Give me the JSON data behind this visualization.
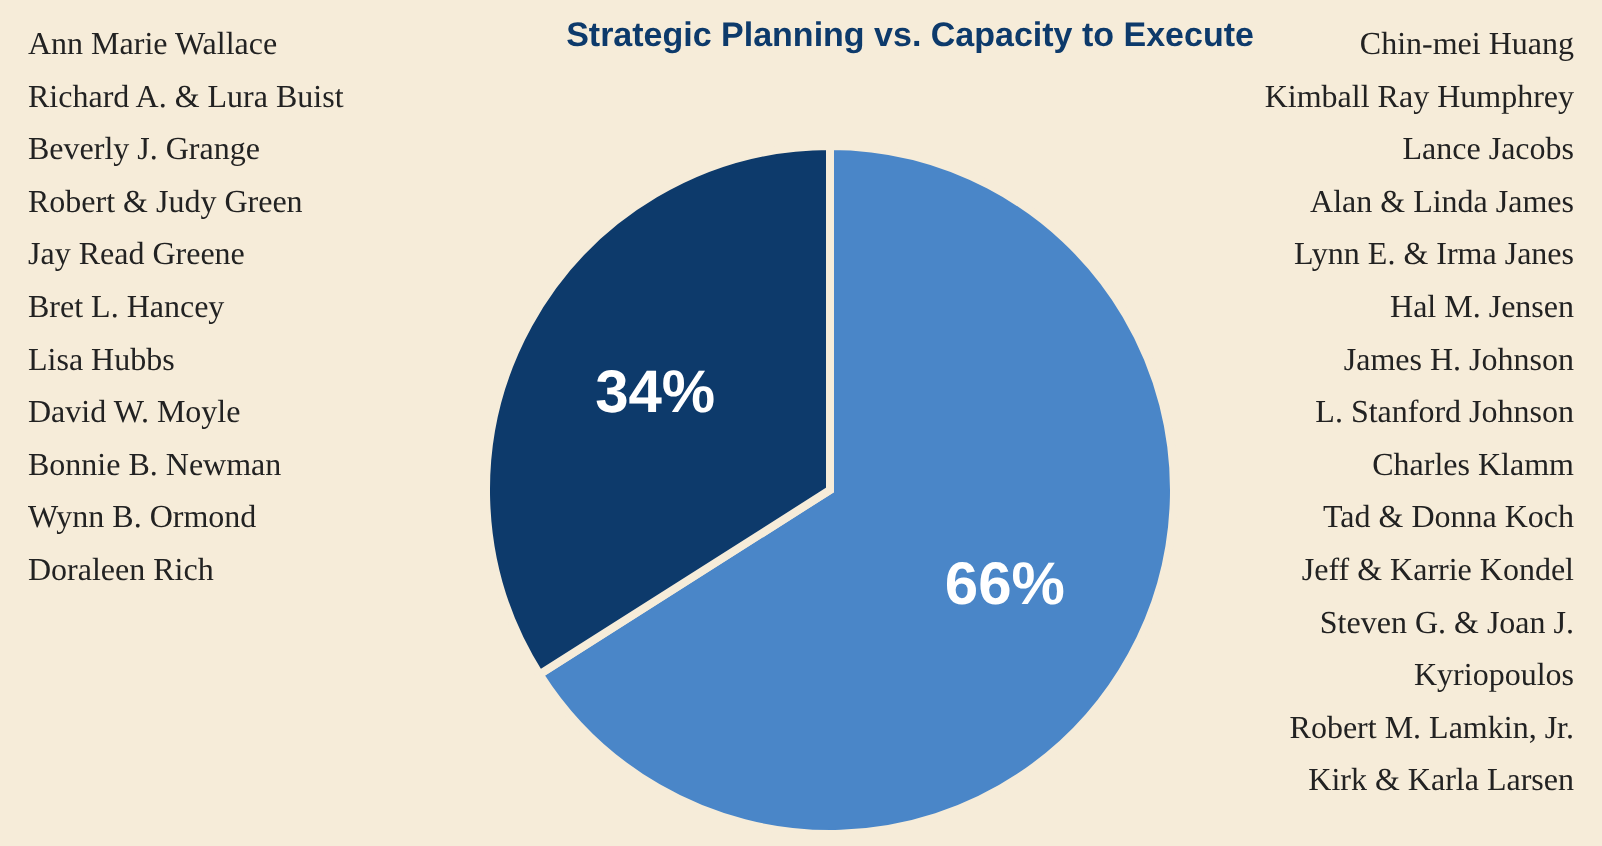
{
  "chart_data": {
    "type": "pie",
    "title": "Strategic Planning vs. Capacity to Execute",
    "categories": [
      null,
      null
    ],
    "values": [
      66,
      34
    ],
    "colors": [
      "#4a86c8",
      "#0d3a6b"
    ],
    "value_labels": [
      "66%",
      "34%"
    ],
    "annotations": [
      "Ann Marie Wallace\nRichard A. & Lura Buist\nBeverly J. Grange\nRobert & Judy Green\nJay Read Greene\nBret L. Hancey\nLisa Hubbs\nDavid W. Moyle\nBonnie B. Newman\nWynn B. Ormond\nDoraleen Rich",
      "Chin-mei Huang\nKimball Ray Humphrey\nLance Jacobs\nAlan & Linda James\nLynn E. & Irma Janes\nHal M. Jensen\nJames H. Johnson\nL. Stanford Johnson\nCharles Klamm\nTad & Donna Koch\nJeff & Karrie Kondel\nSteven G. & Joan J.\nKyriopoulos\nRobert M. Lamkin, Jr.\nKirk & Karla Larsen"
    ]
  }
}
